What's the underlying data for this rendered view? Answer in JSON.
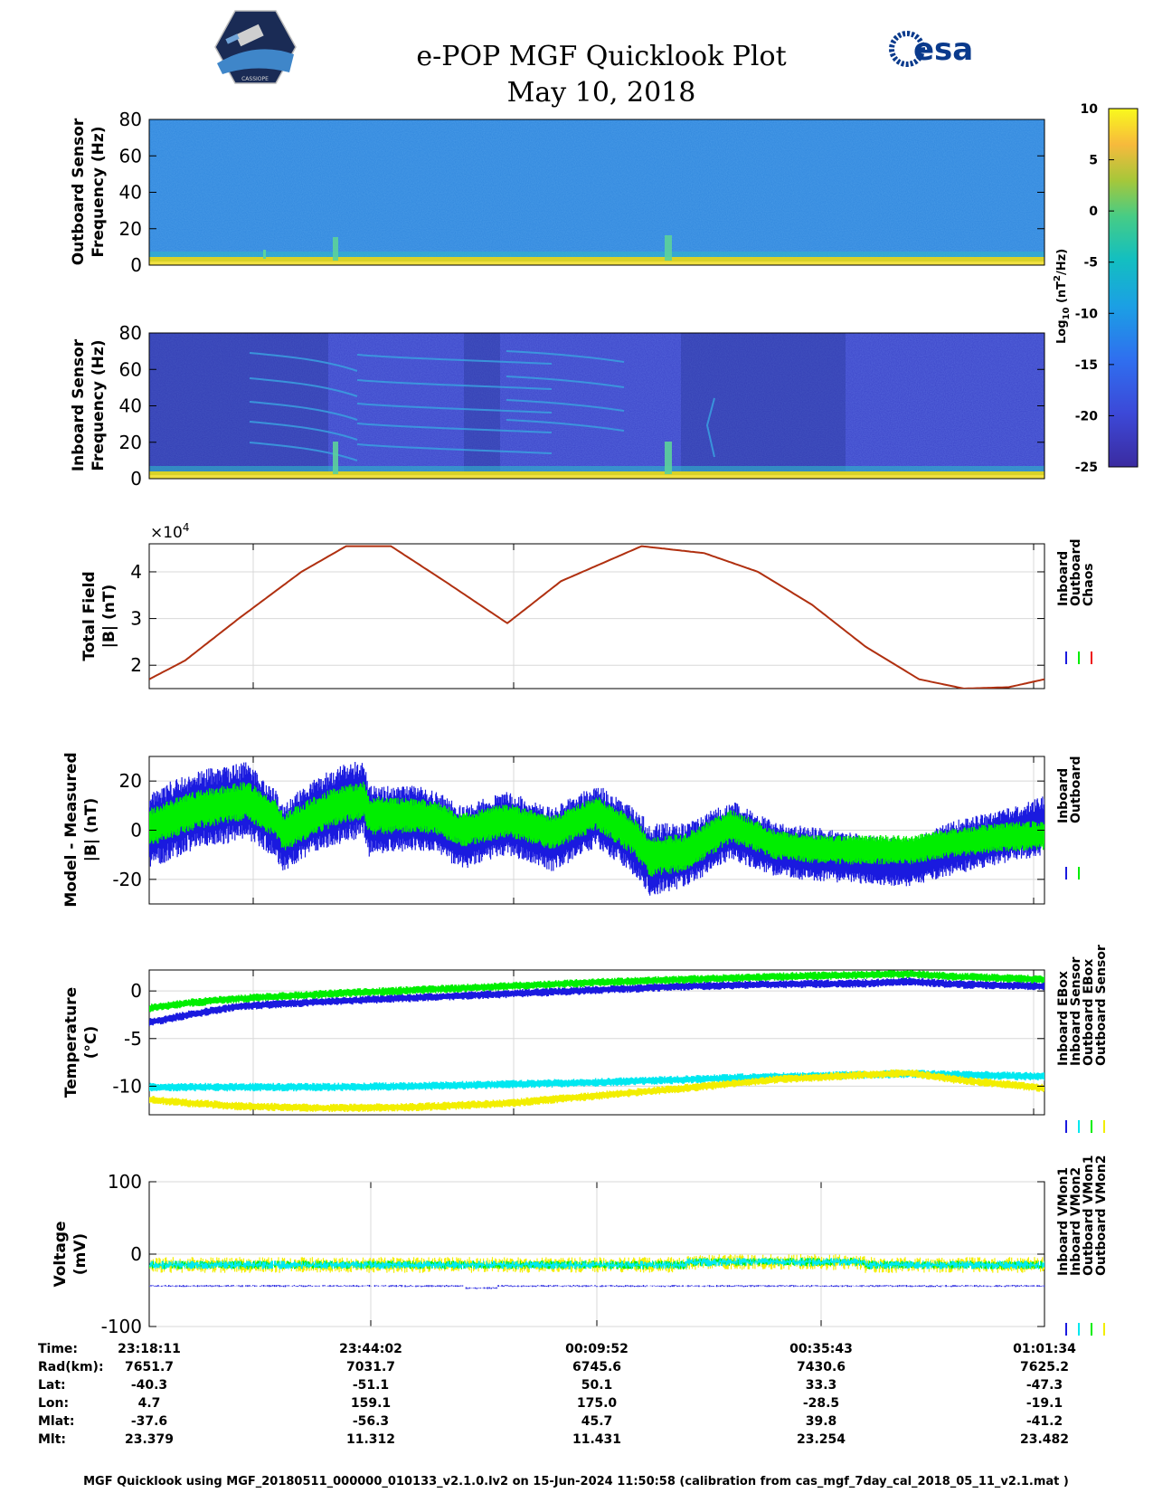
{
  "header": {
    "title": "e-POP MGF Quicklook Plot",
    "date": "May 10, 2018",
    "mission_logo_text": "CASSIOPE",
    "agency_logo_text": "esa"
  },
  "colors": {
    "inboard": "#1a1adf",
    "outboard": "#00ee00",
    "chaos": "#ee1111",
    "trace_total_field": "#b03010",
    "cyan": "#00e8f0",
    "yellow": "#f2ee00",
    "spec_bg_outboard": "#2f86dd",
    "spec_bg_inboard": "#3a43c8",
    "grid": "#d8d8d8"
  },
  "colorbar": {
    "label": "Log10 (nT²/Hz)",
    "label_main": "Log",
    "label_sub": "10",
    "label_rest": "(nT",
    "label_sup": "2",
    "label_end": "/Hz)",
    "ticks": [
      "10",
      "5",
      "0",
      "-5",
      "-10",
      "-15",
      "-20",
      "-25"
    ],
    "range": [
      -25,
      10
    ]
  },
  "chart_data": [
    {
      "type": "heatmap",
      "panel": "outboard-spectrogram",
      "ylabel_line1": "Outboard Sensor",
      "ylabel_line2": "Frequency (Hz)",
      "ylim": [
        0,
        80
      ],
      "yticks": [
        "80",
        "60",
        "40",
        "20",
        "0"
      ],
      "background_level": -13,
      "low_frequency_band_level": 7
    },
    {
      "type": "heatmap",
      "panel": "inboard-spectrogram",
      "ylabel_line1": "Inboard Sensor",
      "ylabel_line2": "Frequency (Hz)",
      "ylim": [
        0,
        80
      ],
      "yticks": [
        "80",
        "60",
        "40",
        "20",
        "0"
      ],
      "background_level": -21,
      "low_frequency_band_level": 7
    },
    {
      "type": "line",
      "panel": "total-field",
      "ylabel_line1": "Total Field",
      "ylabel_line2": "|B| (nT)",
      "exponent_label": "×10",
      "exponent_power": "4",
      "ylim": [
        1.5,
        4.6
      ],
      "yticks": [
        {
          "v": 4,
          "t": "4"
        },
        {
          "v": 3,
          "t": "3"
        },
        {
          "v": 2,
          "t": "2"
        }
      ],
      "legend": [
        "Inboard",
        "Outboard",
        "Chaos"
      ],
      "series": [
        {
          "name": "Chaos",
          "values": [
            1.7,
            2.1,
            3.0,
            4.0,
            4.55,
            4.55,
            3.8,
            2.9,
            3.8,
            4.55,
            4.4,
            4.0,
            3.3,
            2.4,
            1.7,
            1.5,
            1.53,
            1.7
          ]
        }
      ],
      "x": [
        0,
        0.04,
        0.1,
        0.17,
        0.22,
        0.27,
        0.33,
        0.4,
        0.46,
        0.55,
        0.62,
        0.68,
        0.74,
        0.8,
        0.86,
        0.91,
        0.96,
        1.0
      ]
    },
    {
      "type": "line",
      "panel": "model-minus-measured",
      "ylabel_line1": "Model - Measured",
      "ylabel_line2": "|B| (nT)",
      "ylim": [
        -30,
        30
      ],
      "yticks": [
        {
          "v": 20,
          "t": "20"
        },
        {
          "v": 0,
          "t": "0"
        },
        {
          "v": -20,
          "t": "-20"
        }
      ],
      "legend": [
        "Inboard",
        "Outboard"
      ],
      "x": [
        0,
        0.05,
        0.11,
        0.14,
        0.15,
        0.18,
        0.21,
        0.24,
        0.245,
        0.3,
        0.32,
        0.35,
        0.4,
        0.45,
        0.5,
        0.54,
        0.56,
        0.6,
        0.65,
        0.7,
        0.75,
        0.8,
        0.85,
        0.9,
        0.95,
        1.0
      ],
      "series": [
        {
          "name": "Inboard",
          "center": [
            0,
            8,
            12,
            3,
            -3,
            5,
            10,
            13,
            4,
            5,
            3,
            -3,
            3,
            -4,
            6,
            -4,
            -12,
            -10,
            0,
            -8,
            -10,
            -12,
            -13,
            -7,
            -3,
            2
          ],
          "halfwidth": [
            16,
            16,
            16,
            14,
            14,
            15,
            16,
            16,
            15,
            13,
            13,
            13,
            13,
            13,
            13,
            14,
            15,
            13,
            12,
            11,
            11,
            10,
            10,
            11,
            11,
            12
          ]
        },
        {
          "name": "Outboard",
          "center": [
            1,
            8,
            12,
            5,
            -1,
            5,
            10,
            12,
            6,
            6,
            5,
            0,
            4,
            -1,
            7,
            -2,
            -11,
            -9,
            2,
            -6,
            -8,
            -8,
            -8,
            -5,
            -3,
            -2
          ],
          "halfwidth": [
            8,
            8,
            8,
            8,
            8,
            8,
            8,
            8,
            8,
            7,
            7,
            7,
            7,
            7,
            7,
            8,
            8,
            8,
            7,
            6,
            6,
            6,
            6,
            6,
            6,
            6
          ]
        }
      ]
    },
    {
      "type": "line",
      "panel": "temperature",
      "ylabel_line1": "Temperature",
      "ylabel_line2": "(°C)",
      "ylim": [
        -13,
        2.2
      ],
      "yticks": [
        {
          "v": 0,
          "t": "0"
        },
        {
          "v": -5,
          "t": "-5"
        },
        {
          "v": -10,
          "t": "-10"
        }
      ],
      "legend": [
        "Inboard EBox",
        "Inboard Sensor",
        "Outboard EBox",
        "Outboard Sensor"
      ],
      "x": [
        0,
        0.05,
        0.1,
        0.2,
        0.3,
        0.4,
        0.5,
        0.6,
        0.7,
        0.8,
        0.85,
        0.9,
        1.0
      ],
      "series": [
        {
          "name": "Inboard EBox",
          "values": [
            -3.3,
            -2.4,
            -1.6,
            -1.1,
            -0.7,
            -0.3,
            0.1,
            0.5,
            0.7,
            0.8,
            1.0,
            0.7,
            0.5
          ]
        },
        {
          "name": "Inboard Sensor",
          "values": [
            -10.1,
            -10.1,
            -10.1,
            -10.1,
            -10.0,
            -9.8,
            -9.6,
            -9.3,
            -9.0,
            -8.8,
            -8.7,
            -8.8,
            -9.0
          ]
        },
        {
          "name": "Outboard EBox",
          "values": [
            -1.8,
            -1.2,
            -0.8,
            -0.3,
            0.1,
            0.5,
            0.9,
            1.2,
            1.5,
            1.7,
            1.8,
            1.5,
            1.2
          ]
        },
        {
          "name": "Outboard Sensor",
          "values": [
            -11.4,
            -11.8,
            -12.1,
            -12.3,
            -12.2,
            -11.8,
            -11.0,
            -10.2,
            -9.3,
            -8.8,
            -8.6,
            -9.3,
            -10.2
          ]
        }
      ]
    },
    {
      "type": "line",
      "panel": "voltage",
      "ylabel_line1": "Voltage",
      "ylabel_line2": "(mV)",
      "ylim": [
        -100,
        100
      ],
      "yticks": [
        {
          "v": 100,
          "t": "100"
        },
        {
          "v": 0,
          "t": "0"
        },
        {
          "v": -100,
          "t": "-100"
        }
      ],
      "legend": [
        "Inboard VMon1",
        "Inboard VMon2",
        "Outboard VMon1",
        "Outboard VMon2"
      ],
      "series": [
        {
          "name": "Inboard VMon1",
          "level": -44
        },
        {
          "name": "Inboard VMon2",
          "level": -15
        },
        {
          "name": "Outboard VMon1",
          "level": -15
        },
        {
          "name": "Outboard VMon2",
          "level": -15
        }
      ]
    }
  ],
  "orbit_table": {
    "row_labels": [
      "Time:",
      "Rad(km):",
      "Lat:",
      "Lon:",
      "Mlat:",
      "Mlt:"
    ],
    "columns": [
      [
        "23:18:11",
        "7651.7",
        "-40.3",
        "4.7",
        "-37.6",
        "23.379"
      ],
      [
        "23:44:02",
        "7031.7",
        "-51.1",
        "159.1",
        "-56.3",
        "11.312"
      ],
      [
        "00:09:52",
        "6745.6",
        "50.1",
        "175.0",
        "45.7",
        "11.431"
      ],
      [
        "00:35:43",
        "7430.6",
        "33.3",
        "-28.5",
        "39.8",
        "23.254"
      ],
      [
        "01:01:34",
        "7625.2",
        "-47.3",
        "-19.1",
        "-41.2",
        "23.482"
      ]
    ]
  },
  "footer": "MGF Quicklook using MGF_20180511_000000_010133_v2.1.0.lv2 on 15-Jun-2024 11:50:58 (calibration from cas_mgf_7day_cal_2018_05_11_v2.1.mat )"
}
